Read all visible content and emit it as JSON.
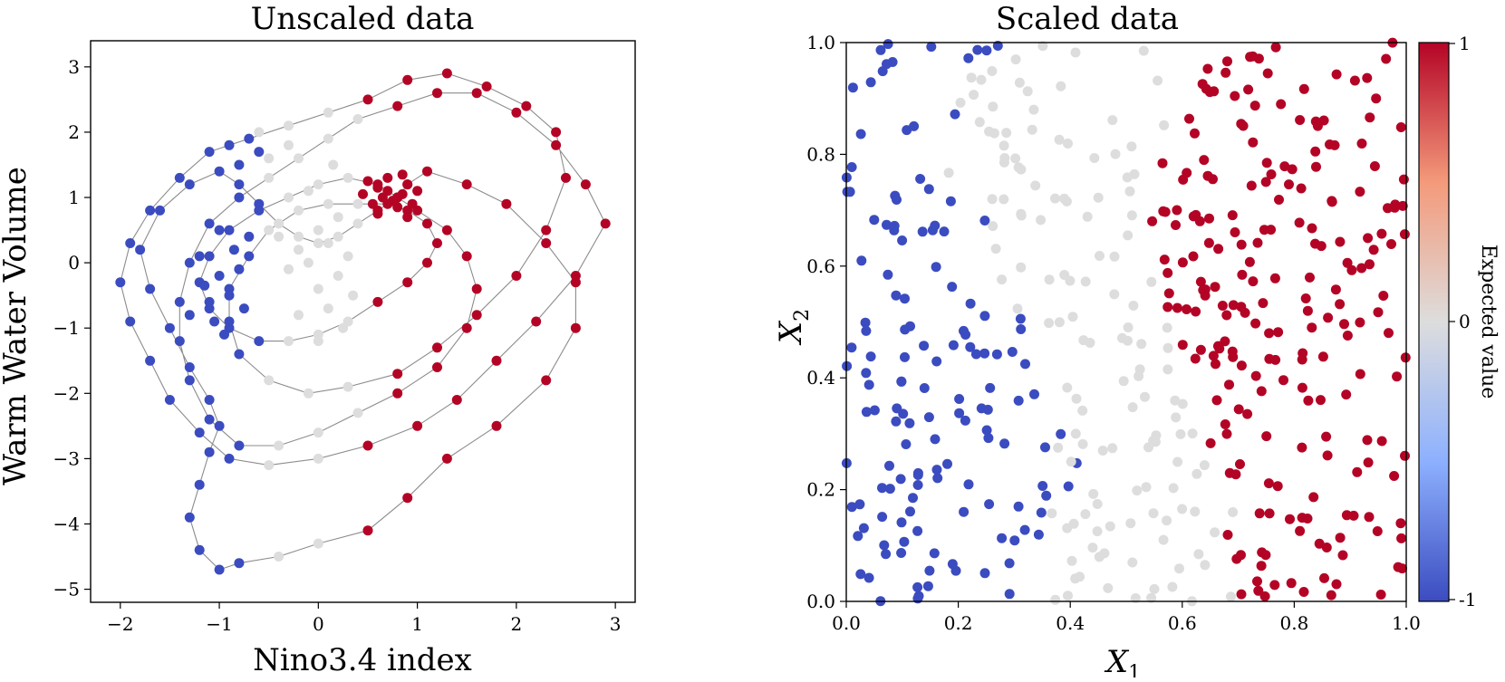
{
  "chart_data": [
    {
      "type": "scatter",
      "title": "Unscaled data",
      "xlabel": "Nino3.4 index",
      "ylabel": "Warm Water Volume",
      "xlim": [
        -2.3,
        3.2
      ],
      "ylim": [
        -5.2,
        3.4
      ],
      "xticks": [
        -2,
        -1,
        0,
        1,
        2,
        3
      ],
      "xtick_labels": [
        "−2",
        "−1",
        "0",
        "1",
        "2",
        "3"
      ],
      "yticks": [
        -5,
        -4,
        -3,
        -2,
        -1,
        0,
        1,
        2,
        3
      ],
      "ytick_labels": [
        "−5",
        "−4",
        "−3",
        "−2",
        "−1",
        "0",
        "1",
        "2",
        "3"
      ],
      "connected": true,
      "colors": {
        "-1": "#3b4cc0",
        "0": "#dddddd",
        "1": "#b40426",
        "line": "#8c8c8c"
      },
      "trajectory_points": [
        [
          0.8,
          1.0
        ],
        [
          0.9,
          1.2
        ],
        [
          1.1,
          1.4
        ],
        [
          1.5,
          1.2
        ],
        [
          1.9,
          0.9
        ],
        [
          2.3,
          0.3
        ],
        [
          2.6,
          -0.3
        ],
        [
          2.6,
          -1.0
        ],
        [
          2.3,
          -1.8
        ],
        [
          1.8,
          -2.5
        ],
        [
          1.3,
          -3.0
        ],
        [
          0.9,
          -3.6
        ],
        [
          0.5,
          -4.1
        ],
        [
          0.0,
          -4.3
        ],
        [
          -0.4,
          -4.5
        ],
        [
          -0.8,
          -4.6
        ],
        [
          -1.0,
          -4.7
        ],
        [
          -1.2,
          -4.4
        ],
        [
          -1.3,
          -3.9
        ],
        [
          -1.2,
          -3.4
        ],
        [
          -1.1,
          -2.9
        ],
        [
          -1.0,
          -2.5
        ],
        [
          -1.1,
          -2.1
        ],
        [
          -1.3,
          -1.6
        ],
        [
          -1.5,
          -1.0
        ],
        [
          -1.7,
          -0.4
        ],
        [
          -1.8,
          0.2
        ],
        [
          -1.6,
          0.8
        ],
        [
          -1.3,
          1.2
        ],
        [
          -1.0,
          1.4
        ],
        [
          -0.8,
          1.2
        ],
        [
          -0.6,
          0.9
        ],
        [
          -0.4,
          0.6
        ],
        [
          -0.2,
          0.4
        ],
        [
          0.0,
          0.3
        ],
        [
          0.2,
          0.4
        ],
        [
          0.4,
          0.6
        ],
        [
          0.6,
          0.8
        ],
        [
          0.8,
          1.0
        ],
        [
          1.0,
          0.8
        ],
        [
          1.3,
          0.5
        ],
        [
          1.5,
          0.1
        ],
        [
          1.6,
          -0.4
        ],
        [
          1.5,
          -1.0
        ],
        [
          1.2,
          -1.6
        ],
        [
          0.8,
          -2.0
        ],
        [
          0.4,
          -2.3
        ],
        [
          0.0,
          -2.6
        ],
        [
          -0.4,
          -2.8
        ],
        [
          -0.8,
          -2.8
        ],
        [
          -1.1,
          -2.4
        ],
        [
          -1.3,
          -1.8
        ],
        [
          -1.4,
          -1.2
        ],
        [
          -1.4,
          -0.6
        ],
        [
          -1.3,
          0.0
        ],
        [
          -1.1,
          0.6
        ],
        [
          -0.8,
          1.0
        ],
        [
          -0.5,
          1.3
        ],
        [
          -0.2,
          1.6
        ],
        [
          0.1,
          1.9
        ],
        [
          0.4,
          2.2
        ],
        [
          0.8,
          2.4
        ],
        [
          1.2,
          2.6
        ],
        [
          1.6,
          2.6
        ],
        [
          2.0,
          2.3
        ],
        [
          2.4,
          1.8
        ],
        [
          2.7,
          1.2
        ],
        [
          2.9,
          0.6
        ],
        [
          2.6,
          -0.2
        ],
        [
          2.2,
          -0.9
        ],
        [
          1.8,
          -1.5
        ],
        [
          1.4,
          -2.1
        ],
        [
          1.0,
          -2.5
        ],
        [
          0.5,
          -2.8
        ],
        [
          0.0,
          -3.0
        ],
        [
          -0.5,
          -3.1
        ],
        [
          -0.9,
          -3.0
        ],
        [
          -1.2,
          -2.6
        ],
        [
          -1.5,
          -2.1
        ],
        [
          -1.7,
          -1.5
        ],
        [
          -1.9,
          -0.9
        ],
        [
          -2.0,
          -0.3
        ],
        [
          -1.9,
          0.3
        ],
        [
          -1.7,
          0.8
        ],
        [
          -1.4,
          1.3
        ],
        [
          -1.1,
          1.7
        ],
        [
          -0.7,
          1.9
        ],
        [
          -0.3,
          2.1
        ],
        [
          0.1,
          2.3
        ],
        [
          0.5,
          2.5
        ],
        [
          0.9,
          2.8
        ],
        [
          1.3,
          2.9
        ],
        [
          1.7,
          2.7
        ],
        [
          2.1,
          2.4
        ],
        [
          2.4,
          2.0
        ],
        [
          2.5,
          1.3
        ],
        [
          2.3,
          0.5
        ],
        [
          2.0,
          -0.2
        ],
        [
          1.6,
          -0.8
        ],
        [
          1.2,
          -1.3
        ],
        [
          0.8,
          -1.7
        ],
        [
          0.3,
          -1.9
        ],
        [
          -0.1,
          -2.0
        ],
        [
          -0.5,
          -1.8
        ],
        [
          -0.8,
          -1.4
        ],
        [
          -0.9,
          -0.9
        ],
        [
          -0.9,
          -0.4
        ],
        [
          -0.7,
          0.1
        ],
        [
          -0.5,
          0.5
        ],
        [
          -0.2,
          0.8
        ],
        [
          0.1,
          0.9
        ],
        [
          0.4,
          0.9
        ],
        [
          0.7,
          0.9
        ],
        [
          0.9,
          0.8
        ],
        [
          1.1,
          0.6
        ],
        [
          1.2,
          0.3
        ],
        [
          1.1,
          0.0
        ],
        [
          0.9,
          -0.3
        ],
        [
          0.6,
          -0.6
        ],
        [
          0.3,
          -0.9
        ],
        [
          0.0,
          -1.1
        ],
        [
          -0.3,
          -1.2
        ],
        [
          -0.6,
          -1.2
        ],
        [
          -0.9,
          -1.0
        ],
        [
          -1.1,
          -0.7
        ],
        [
          -1.2,
          -0.3
        ],
        [
          -1.1,
          0.1
        ],
        [
          -0.9,
          0.5
        ],
        [
          -0.6,
          0.8
        ],
        [
          -0.3,
          1.0
        ],
        [
          0.0,
          1.2
        ],
        [
          0.3,
          1.3
        ],
        [
          0.6,
          1.2
        ],
        [
          0.8,
          1.0
        ]
      ],
      "cluster_points": [
        [
          0.7,
          1.1,
          1
        ],
        [
          0.75,
          0.95,
          1
        ],
        [
          0.85,
          1.05,
          1
        ],
        [
          0.65,
          1.0,
          1
        ],
        [
          0.9,
          1.2,
          1
        ],
        [
          0.6,
          1.15,
          1
        ],
        [
          0.8,
          0.85,
          1
        ],
        [
          0.95,
          0.9,
          1
        ],
        [
          0.7,
          1.3,
          1
        ],
        [
          0.55,
          0.9,
          1
        ],
        [
          1.0,
          1.1,
          1
        ],
        [
          0.45,
          1.05,
          1
        ],
        [
          0.85,
          1.35,
          1
        ],
        [
          0.6,
          0.75,
          1
        ],
        [
          0.9,
          0.7,
          1
        ],
        [
          0.5,
          1.25,
          1
        ],
        [
          0.0,
          0.5,
          0
        ],
        [
          0.1,
          0.3,
          0
        ],
        [
          -0.1,
          0.0,
          0
        ],
        [
          0.2,
          -0.2,
          0
        ],
        [
          -0.2,
          0.2,
          0
        ],
        [
          0.3,
          0.1,
          0
        ],
        [
          0.0,
          -0.4,
          0
        ],
        [
          -0.3,
          -0.1,
          0
        ],
        [
          0.2,
          0.7,
          0
        ],
        [
          -0.1,
          1.1,
          0
        ],
        [
          0.1,
          -0.7,
          0
        ],
        [
          -0.4,
          0.4,
          0
        ],
        [
          0.35,
          -0.5,
          0
        ],
        [
          -0.2,
          -0.8,
          0
        ],
        [
          0.0,
          -1.2,
          0
        ],
        [
          0.25,
          -1.0,
          0
        ],
        [
          -0.5,
          1.6,
          0
        ],
        [
          -0.3,
          1.8,
          0
        ],
        [
          0.15,
          1.5,
          0
        ],
        [
          -0.6,
          2.0,
          0
        ],
        [
          -1.0,
          -0.2,
          -1
        ],
        [
          -0.9,
          -0.5,
          -1
        ],
        [
          -1.1,
          -0.6,
          -1
        ],
        [
          -0.8,
          -0.1,
          -1
        ],
        [
          -1.2,
          0.1,
          -1
        ],
        [
          -0.85,
          0.2,
          -1
        ],
        [
          -1.05,
          -0.9,
          -1
        ],
        [
          -0.95,
          -1.1,
          -1
        ],
        [
          -1.15,
          -0.35,
          -1
        ],
        [
          -0.75,
          -0.7,
          -1
        ],
        [
          -1.3,
          -0.8,
          -1
        ],
        [
          -0.7,
          0.4,
          -1
        ],
        [
          -1.0,
          0.5,
          -1
        ],
        [
          -0.8,
          1.5,
          -1
        ],
        [
          -0.9,
          1.8,
          -1
        ],
        [
          -0.6,
          1.7,
          -1
        ]
      ]
    },
    {
      "type": "scatter",
      "title": "Scaled data",
      "xlabel": "X",
      "xlabel_sub": "1",
      "ylabel": "X",
      "ylabel_sub": "2",
      "xlim": [
        0.0,
        1.0
      ],
      "ylim": [
        0.0,
        1.0
      ],
      "xticks": [
        0.0,
        0.2,
        0.4,
        0.6,
        0.8,
        1.0
      ],
      "xtick_labels": [
        "0.0",
        "0.2",
        "0.4",
        "0.6",
        "0.8",
        "1.0"
      ],
      "yticks": [
        0.0,
        0.2,
        0.4,
        0.6,
        0.8,
        1.0
      ],
      "ytick_labels": [
        "0.0",
        "0.2",
        "0.4",
        "0.6",
        "0.8",
        "1.0"
      ],
      "rule": "class = -1 for x1 < ~0.3-0.4, 0 in middle, 1 for x1 > ~0.65",
      "n_points": 500,
      "colorbar": {
        "label": "Expected value",
        "ticks": [
          "1",
          "0",
          "-1"
        ],
        "min": -1,
        "max": 1
      }
    }
  ]
}
